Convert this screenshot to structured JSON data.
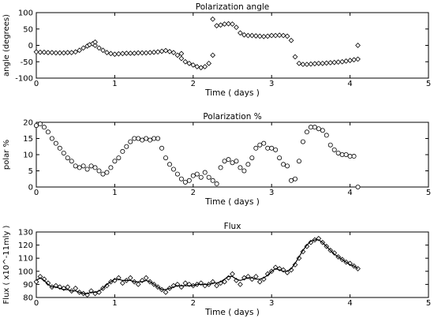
{
  "chart_data": [
    {
      "type": "scatter",
      "title": "Polarization angle",
      "xlabel": "Time ( days )",
      "ylabel": "angle (degrees)",
      "xlim": [
        0,
        5
      ],
      "ylim": [
        -100,
        100
      ],
      "xticks": [
        0,
        1,
        2,
        3,
        4,
        5
      ],
      "yticks": [
        -100,
        -50,
        0,
        50,
        100
      ],
      "marker": "diamond",
      "series": [
        {
          "x": [
            0.0,
            0.05,
            0.1,
            0.15,
            0.2,
            0.25,
            0.3,
            0.35,
            0.4,
            0.45,
            0.5,
            0.55,
            0.6,
            0.65,
            0.68,
            0.72,
            0.75,
            0.8,
            0.85,
            0.9,
            0.95,
            1.0,
            1.05,
            1.1,
            1.15,
            1.2,
            1.25,
            1.3,
            1.35,
            1.4,
            1.45,
            1.5,
            1.55,
            1.6,
            1.65,
            1.7,
            1.75,
            1.8,
            1.85,
            1.9,
            1.95,
            2.0,
            2.05,
            2.1,
            2.15,
            2.2,
            2.25,
            2.3,
            2.35,
            2.4,
            2.45,
            2.5,
            2.55,
            2.6,
            2.65,
            2.7,
            2.75,
            2.8,
            2.85,
            2.9,
            2.95,
            3.0,
            3.05,
            3.1,
            3.15,
            3.2,
            3.25,
            3.3,
            3.35,
            3.4,
            3.45,
            3.5,
            3.55,
            3.6,
            3.65,
            3.7,
            3.75,
            3.8,
            3.85,
            3.9,
            3.95,
            4.0,
            4.05,
            4.1
          ],
          "y": [
            -20,
            -21,
            -21,
            -22,
            -22,
            -23,
            -23,
            -23,
            -22,
            -22,
            -20,
            -15,
            -8,
            -2,
            2,
            5,
            0,
            -8,
            -15,
            -22,
            -25,
            -27,
            -26,
            -25,
            -24,
            -24,
            -24,
            -23,
            -23,
            -23,
            -22,
            -21,
            -20,
            -18,
            -16,
            -19,
            -22,
            -30,
            -40,
            -50,
            -55,
            -60,
            -65,
            -68,
            -65,
            -55,
            -30,
            60,
            62,
            65,
            66,
            65,
            55,
            38,
            32,
            30,
            30,
            29,
            28,
            27,
            28,
            30,
            30,
            31,
            30,
            28,
            15,
            -35,
            -55,
            -58,
            -58,
            -57,
            -56,
            -55,
            -55,
            -54,
            -53,
            -52,
            -51,
            -50,
            -48,
            -46,
            -44,
            -42
          ]
        },
        {
          "x": [
            0.75,
            1.85,
            2.25,
            4.1
          ],
          "y": [
            10,
            -25,
            80,
            0
          ]
        }
      ]
    },
    {
      "type": "scatter",
      "title": "Polarization %",
      "xlabel": "Time ( days )",
      "ylabel": "polar %",
      "xlim": [
        0,
        5
      ],
      "ylim": [
        0,
        20
      ],
      "xticks": [
        0,
        1,
        2,
        3,
        4,
        5
      ],
      "yticks": [
        0,
        5,
        10,
        15,
        20
      ],
      "marker": "circle",
      "series": [
        {
          "x": [
            0.0,
            0.05,
            0.1,
            0.15,
            0.2,
            0.25,
            0.3,
            0.35,
            0.4,
            0.45,
            0.5,
            0.55,
            0.6,
            0.65,
            0.7,
            0.75,
            0.8,
            0.85,
            0.9,
            0.95,
            1.0,
            1.05,
            1.1,
            1.15,
            1.2,
            1.25,
            1.3,
            1.35,
            1.4,
            1.45,
            1.5,
            1.55,
            1.6,
            1.65,
            1.7,
            1.75,
            1.8,
            1.85,
            1.9,
            1.95,
            2.0,
            2.05,
            2.1,
            2.15,
            2.2,
            2.25,
            2.3,
            2.35,
            2.4,
            2.45,
            2.5,
            2.55,
            2.6,
            2.65,
            2.7,
            2.75,
            2.8,
            2.85,
            2.9,
            2.95,
            3.0,
            3.05,
            3.1,
            3.15,
            3.2,
            3.25,
            3.3,
            3.35,
            3.4,
            3.45,
            3.5,
            3.55,
            3.6,
            3.65,
            3.7,
            3.75,
            3.8,
            3.85,
            3.9,
            3.95,
            4.0,
            4.05,
            4.1
          ],
          "y": [
            19,
            19.5,
            18.5,
            17,
            15,
            13.5,
            12,
            10.5,
            9,
            8,
            6.5,
            6,
            6.5,
            5.5,
            6.5,
            6,
            5,
            4,
            4.5,
            6,
            8,
            9,
            11,
            12.5,
            14,
            15,
            15,
            14.5,
            15,
            14.5,
            15,
            15,
            12,
            9,
            7,
            5.5,
            4,
            2.5,
            1.5,
            2,
            3.5,
            4,
            3,
            4.5,
            3,
            2,
            1,
            6,
            8,
            8.5,
            7.5,
            8,
            6,
            5,
            7,
            9,
            12,
            13,
            13.5,
            12,
            12,
            11.5,
            9,
            7,
            6.5,
            2,
            2.5,
            8,
            14,
            17,
            18.5,
            18.5,
            18,
            17.5,
            16,
            13,
            11.5,
            10.5,
            10,
            10,
            9.5,
            9.5,
            0
          ]
        }
      ]
    },
    {
      "type": "line",
      "title": "Flux",
      "xlabel": "Time ( days )",
      "ylabel": "Flux ( x10^-11mly )",
      "xlim": [
        0,
        5
      ],
      "ylim": [
        80,
        130
      ],
      "xticks": [
        0,
        1,
        2,
        3,
        4,
        5
      ],
      "yticks": [
        80,
        90,
        100,
        110,
        120,
        130
      ],
      "marker": "diamond",
      "series": [
        {
          "x": [
            0.0,
            0.05,
            0.1,
            0.15,
            0.2,
            0.25,
            0.3,
            0.35,
            0.4,
            0.45,
            0.5,
            0.55,
            0.6,
            0.65,
            0.7,
            0.75,
            0.8,
            0.85,
            0.9,
            0.95,
            1.0,
            1.05,
            1.1,
            1.15,
            1.2,
            1.25,
            1.3,
            1.35,
            1.4,
            1.45,
            1.5,
            1.55,
            1.6,
            1.65,
            1.7,
            1.75,
            1.8,
            1.85,
            1.9,
            1.95,
            2.0,
            2.05,
            2.1,
            2.15,
            2.2,
            2.25,
            2.3,
            2.35,
            2.4,
            2.45,
            2.5,
            2.55,
            2.6,
            2.65,
            2.7,
            2.75,
            2.8,
            2.85,
            2.9,
            2.95,
            3.0,
            3.05,
            3.1,
            3.15,
            3.2,
            3.25,
            3.3,
            3.35,
            3.4,
            3.45,
            3.5,
            3.55,
            3.6,
            3.65,
            3.7,
            3.75,
            3.8,
            3.85,
            3.9,
            3.95,
            4.0,
            4.05,
            4.1
          ],
          "y": [
            92,
            96,
            94,
            91,
            88,
            89,
            88,
            87,
            88,
            85,
            87,
            84,
            83,
            82,
            85,
            83,
            84,
            87,
            89,
            92,
            93,
            95,
            91,
            93,
            95,
            92,
            90,
            93,
            95,
            92,
            90,
            88,
            86,
            84,
            87,
            89,
            90,
            88,
            91,
            90,
            89,
            90,
            91,
            89,
            90,
            92,
            89,
            91,
            92,
            95,
            98,
            93,
            90,
            95,
            96,
            94,
            96,
            92,
            94,
            98,
            100,
            103,
            102,
            101,
            99,
            101,
            105,
            110,
            115,
            119,
            122,
            124,
            125,
            122,
            119,
            116,
            114,
            111,
            109,
            107,
            106,
            104,
            102
          ]
        },
        {
          "x": [
            0.0,
            0.05,
            0.1,
            0.15,
            0.2,
            0.25,
            0.3,
            0.35,
            0.4,
            0.45,
            0.5,
            0.55,
            0.6,
            0.65,
            0.7,
            0.75,
            0.8,
            0.85,
            0.9,
            0.95,
            1.0,
            1.05,
            1.1,
            1.15,
            1.2,
            1.25,
            1.3,
            1.35,
            1.4,
            1.45,
            1.5,
            1.55,
            1.6,
            1.65,
            1.7,
            1.75,
            1.8,
            1.85,
            1.9,
            1.95,
            2.0,
            2.05,
            2.1,
            2.15,
            2.2,
            2.25,
            2.3,
            2.35,
            2.4,
            2.45,
            2.5,
            2.55,
            2.6,
            2.65,
            2.7,
            2.75,
            2.8,
            2.85,
            2.9,
            2.95,
            3.0,
            3.05,
            3.1,
            3.15,
            3.2,
            3.25,
            3.3,
            3.35,
            3.4,
            3.45,
            3.5,
            3.55,
            3.6,
            3.65,
            3.7,
            3.75,
            3.8,
            3.85,
            3.9,
            3.95,
            4.0,
            4.05,
            4.1
          ],
          "y": [
            93,
            95,
            93,
            90,
            88,
            88,
            87,
            86,
            86,
            85,
            85,
            84,
            83,
            83,
            84,
            84,
            85,
            87,
            90,
            92,
            94,
            94,
            93,
            93,
            93,
            92,
            92,
            92,
            93,
            92,
            90,
            88,
            86,
            86,
            87,
            88,
            89,
            89,
            89,
            89,
            89,
            90,
            90,
            90,
            90,
            91,
            91,
            92,
            94,
            96,
            96,
            94,
            93,
            94,
            95,
            95,
            94,
            94,
            95,
            97,
            100,
            102,
            101,
            100,
            100,
            102,
            106,
            111,
            116,
            120,
            123,
            124,
            124,
            122,
            119,
            116,
            113,
            111,
            109,
            107,
            105,
            104,
            102
          ]
        }
      ]
    }
  ]
}
